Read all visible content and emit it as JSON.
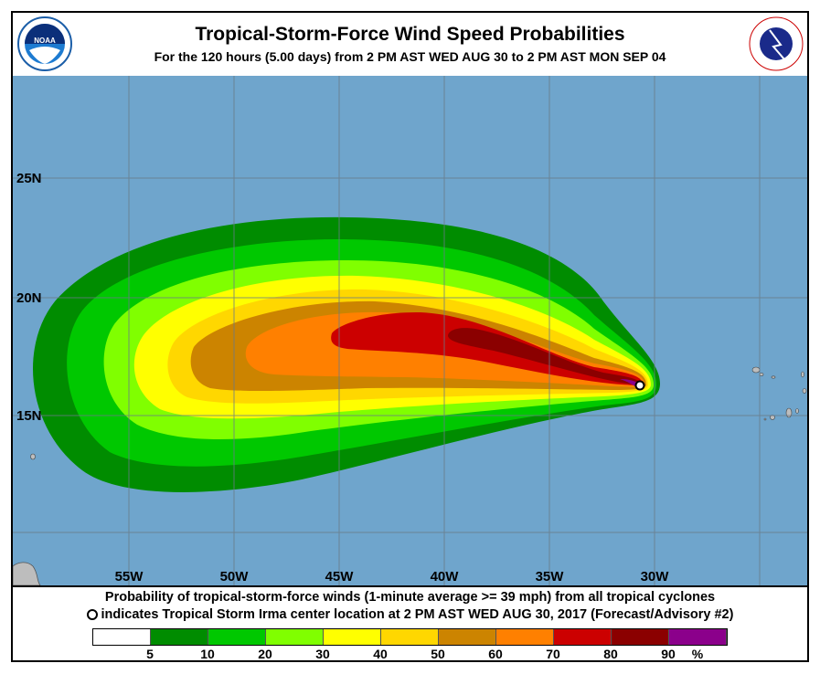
{
  "header": {
    "title": "Tropical-Storm-Force Wind Speed Probabilities",
    "subtitle": "For the 120 hours (5.00 days) from 2 PM AST WED AUG 30 to 2 PM AST MON SEP 04"
  },
  "logos": {
    "left": "NOAA",
    "right": "NATIONAL WEATHER SERVICE"
  },
  "map": {
    "background": "#6fa5cc",
    "lat_labels": [
      "25N",
      "20N",
      "15N"
    ],
    "lon_labels": [
      "55W",
      "50W",
      "45W",
      "40W",
      "35W",
      "30W"
    ],
    "storm_name": "Irma"
  },
  "caption": {
    "line1": "Probability of tropical-storm-force winds (1-minute average >= 39 mph) from all tropical cyclones",
    "line2": "indicates Tropical Storm Irma center location at 2 PM AST WED AUG 30, 2017 (Forecast/Advisory #2)"
  },
  "legend": {
    "colors": [
      "#ffffff",
      "#008c00",
      "#00c800",
      "#80ff00",
      "#ffff00",
      "#ffd700",
      "#cc8400",
      "#ff8000",
      "#cc0000",
      "#8b0000",
      "#8b008b"
    ],
    "labels": [
      "5",
      "10",
      "20",
      "30",
      "40",
      "50",
      "60",
      "70",
      "80",
      "90",
      "%"
    ]
  }
}
